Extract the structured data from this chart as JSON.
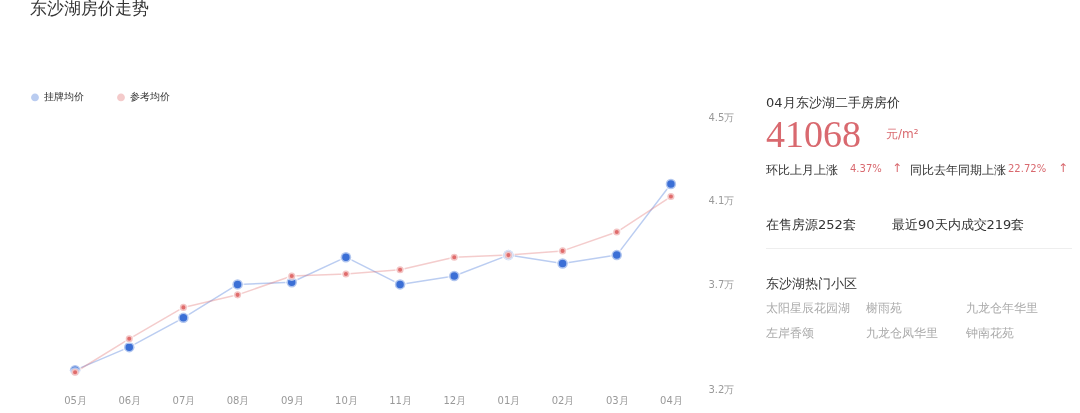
{
  "chart_data": [
    {
      "type": "line",
      "title": "东沙湖房价走势",
      "categories": [
        "05月",
        "06月",
        "07月",
        "08月",
        "09月",
        "10月",
        "11月",
        "12月",
        "01月",
        "02月",
        "03月",
        "04月"
      ],
      "series": [
        {
          "name": "挂牌均价",
          "color": "#3b6fd6",
          "values": [
            3.29,
            3.4,
            3.54,
            3.7,
            3.71,
            3.83,
            3.7,
            3.74,
            3.84,
            3.8,
            3.84,
            4.18
          ]
        },
        {
          "name": "参考均价",
          "color": "#e06c6c",
          "values": [
            3.28,
            3.44,
            3.59,
            3.65,
            3.74,
            3.75,
            3.77,
            3.83,
            3.84,
            3.86,
            3.95,
            4.12
          ]
        }
      ],
      "ylim": [
        3.2,
        4.5
      ],
      "yticks": [
        {
          "value": 3.2,
          "label": "3.2万"
        },
        {
          "value": 3.7,
          "label": "3.7万"
        },
        {
          "value": 4.1,
          "label": "4.1万"
        },
        {
          "value": 4.5,
          "label": "4.5万"
        }
      ],
      "marker": "circle",
      "legend": "top left"
    },
    {
      "type": "other",
      "annotations": [
        "04月东沙湖二手房房价",
        "41068",
        "元/m²",
        "环比上月上涨",
        "4.37%",
        "↑",
        "同比去年同期上涨",
        "22.72%",
        "↑",
        "在售房源252套",
        "最近90天内成交219套",
        "东沙湖热门小区",
        "太阳星辰花园湖",
        "榭雨苑",
        "九龙仓年华里",
        "左岸香颂",
        "九龙仓凤华里",
        "钟南花苑"
      ]
    }
  ]
}
